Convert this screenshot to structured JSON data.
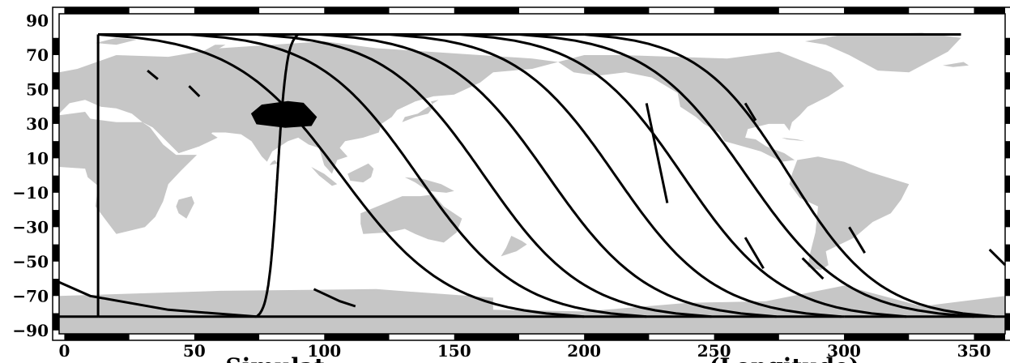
{
  "map": {
    "x_ticks": [
      "0",
      "50",
      "100",
      "150",
      "200",
      "250",
      "300",
      "350"
    ],
    "y_ticks": [
      "90",
      "70",
      "50",
      "30",
      "10",
      "−10",
      "−30",
      "−50",
      "−70",
      "−90"
    ],
    "x_axis_label_fragments": [
      {
        "text": "Simulat",
        "lon": 62
      },
      {
        "text": "(Longitude)",
        "lon": 248
      }
    ],
    "xlim": [
      -2,
      362
    ],
    "ylim": [
      -92,
      94
    ],
    "land_color": "#c6c6c6",
    "track_color": "#000000",
    "frame_color": "#000000"
  },
  "chart_data": {
    "type": "scatter",
    "xlabel": "Simulat… (Longitude)",
    "ylabel": "",
    "xlim": [
      -2,
      362
    ],
    "ylim": [
      -92,
      94
    ],
    "grid": false,
    "orbit_tracks": [
      {
        "lat82_lon": 13,
        "latm82_lon": 13
      },
      {
        "lat82_lon": 90,
        "latm82_lon": 74
      },
      {
        "lat82_lon": 13,
        "latm82_lon": 200
      },
      {
        "lat82_lon": 48,
        "latm82_lon": 224
      },
      {
        "lat82_lon": 74,
        "latm82_lon": 249
      },
      {
        "lat82_lon": 98,
        "latm82_lon": 274
      },
      {
        "lat82_lon": 125,
        "latm82_lon": 299
      },
      {
        "lat82_lon": 152,
        "latm82_lon": 324
      },
      {
        "lat82_lon": 175,
        "latm82_lon": 350
      },
      {
        "lat82_lon": 200,
        "latm82_lon": 358
      }
    ],
    "highlighted_region": {
      "name": "",
      "lon_range": [
        72,
        97
      ],
      "lat_range": [
        26,
        43
      ]
    }
  }
}
